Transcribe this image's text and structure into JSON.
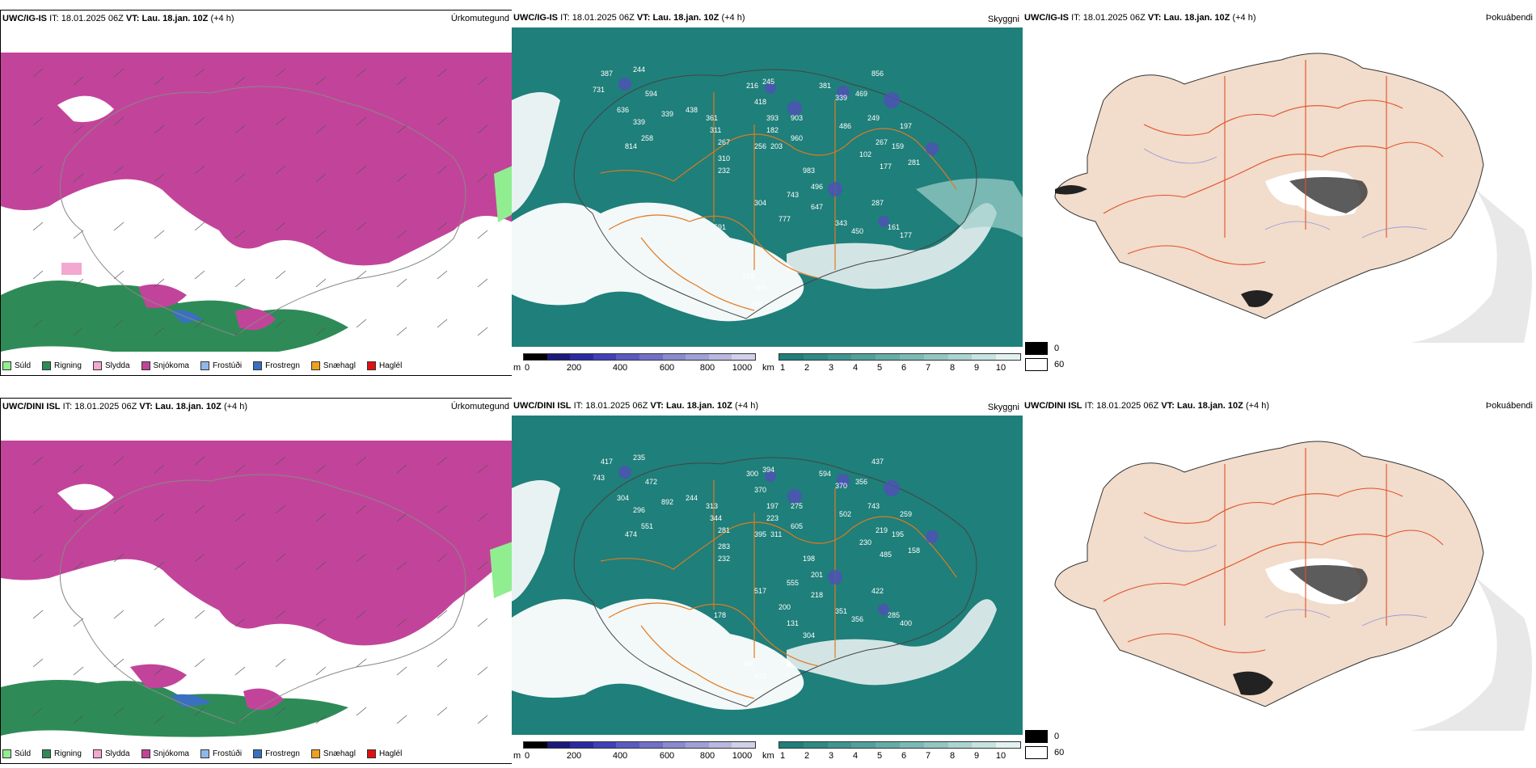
{
  "rows": [
    {
      "model": "UWC/IG-IS",
      "it_label": "IT:",
      "it_value": "18.01.2025 06Z",
      "vt_label": "VT:",
      "vt_value": "Lau. 18.jan. 10Z",
      "lead": "(+4 h)"
    },
    {
      "model": "UWC/DINI ISL",
      "it_label": "IT:",
      "it_value": "18.01.2025 06Z",
      "vt_label": "VT:",
      "vt_value": "Lau. 18.jan. 10Z",
      "lead": "(+4 h)"
    }
  ],
  "panel_titles": {
    "precip": "Úrkomutegund",
    "visibility": "Skyggni",
    "fog": "Þokuábendi"
  },
  "precip_legend": [
    {
      "label": "Súld",
      "color": "#90ee90"
    },
    {
      "label": "Rigning",
      "color": "#2e8b57"
    },
    {
      "label": "Slydda",
      "color": "#f4a7d0"
    },
    {
      "label": "Snjókoma",
      "color": "#c2449a"
    },
    {
      "label": "Frostúði",
      "color": "#8fb8ea"
    },
    {
      "label": "Frostregn",
      "color": "#3a70c0"
    },
    {
      "label": "Snæhagl",
      "color": "#f0a020"
    },
    {
      "label": "Haglél",
      "color": "#e01010"
    }
  ],
  "elevation_bar": {
    "unit": "m",
    "ticks": [
      "0",
      "200",
      "400",
      "600",
      "800",
      "1000"
    ],
    "colors": [
      "#000000",
      "#1a1a7a",
      "#2a2aa0",
      "#4040b8",
      "#5a5ac0",
      "#7070c8",
      "#8a8ad0",
      "#a0a0d8",
      "#b8b8e0",
      "#d0d0ea"
    ]
  },
  "visibility_bar": {
    "unit": "km",
    "ticks": [
      "1",
      "2",
      "3",
      "4",
      "5",
      "6",
      "7",
      "8",
      "9",
      "10"
    ],
    "colors": [
      "#1f7f7a",
      "#2e8a85",
      "#3f9590",
      "#52a09b",
      "#66aca7",
      "#7cb9b4",
      "#93c6c2",
      "#abd4d0",
      "#c5e3e0",
      "#e3f1f0"
    ]
  },
  "fog_key": [
    {
      "label": "0",
      "color": "#000000"
    },
    {
      "label": "60",
      "color": "#ffffff"
    }
  ],
  "peaks": [
    [
      "387",
      "244",
      "594",
      "731",
      "636",
      "339",
      "258",
      "814",
      "339",
      "438",
      "361",
      "311",
      "267",
      "310",
      "232",
      "216",
      "245",
      "418",
      "393",
      "182",
      "203",
      "256",
      "903",
      "960",
      "381",
      "339",
      "469",
      "486",
      "249",
      "856",
      "197",
      "267",
      "102",
      "159",
      "281",
      "983",
      "496",
      "177",
      "743",
      "304",
      "591",
      "777",
      "647",
      "343",
      "450",
      "287",
      "161",
      "177",
      "183",
      "969",
      "499"
    ],
    [
      "417",
      "235",
      "472",
      "743",
      "304",
      "296",
      "551",
      "474",
      "892",
      "244",
      "313",
      "344",
      "281",
      "283",
      "232",
      "300",
      "394",
      "370",
      "197",
      "223",
      "311",
      "395",
      "275",
      "605",
      "594",
      "370",
      "356",
      "502",
      "743",
      "437",
      "259",
      "219",
      "230",
      "195",
      "158",
      "198",
      "201",
      "485",
      "555",
      "517",
      "178",
      "200",
      "218",
      "351",
      "356",
      "422",
      "285",
      "400",
      "446",
      "421",
      "969",
      "131",
      "304"
    ]
  ]
}
